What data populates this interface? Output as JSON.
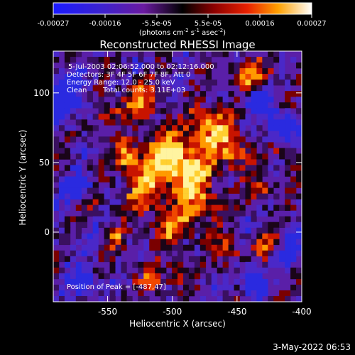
{
  "colorbar": {
    "ticks": [
      "-0.00027",
      "-0.00016",
      "-5.5e-05",
      "5.5e-05",
      "0.00016",
      "0.00027"
    ],
    "unit_label": "(photons cm",
    "unit_exp1": "-2",
    "unit_mid1": " s",
    "unit_exp2": "-1",
    "unit_mid2": " asec",
    "unit_exp3": "-2",
    "unit_close": ")"
  },
  "title": "Reconstructed RHESSI Image",
  "info": {
    "line1": "5-Jul-2003 02:06:52.000 to 02:12:16.000",
    "line2": "Detectors: 3F 4F 5F 6F 7F 8F, Att 0",
    "line3": "Energy Range: 12.0 - 25.0 keV",
    "line4_a": "Clean",
    "line4_b": "Total counts: 3.11E+03",
    "peak": "Position of Peak = [-487,47]"
  },
  "axes": {
    "xlabel": "Heliocentric X (arcsec)",
    "ylabel": "Heliocentric Y (arcsec)",
    "xticks": [
      "-550",
      "-500",
      "-450",
      "-400"
    ],
    "yticks": [
      "100",
      "50",
      "0"
    ],
    "x_tick_values": [
      -550,
      -500,
      -450,
      -400
    ],
    "y_tick_values": [
      100,
      50,
      0
    ],
    "xlim": [
      -592,
      -400
    ],
    "ylim": [
      -50,
      130
    ]
  },
  "timestamp": "3-May-2022 06:53"
}
